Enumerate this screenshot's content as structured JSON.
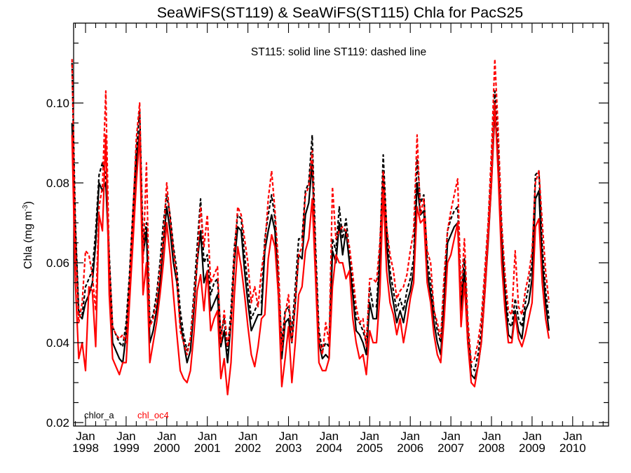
{
  "chart_data": {
    "type": "line",
    "title": "SeaWiFS(ST119) & SeaWiFS(ST115)  Chla for PacS25",
    "annotation": "ST115: solid line   ST119: dashed line",
    "ylabel": "Chla (mg m⁻³)",
    "ylabel_main": "Chla (mg m",
    "ylabel_sup": "-3",
    "ylabel_close": ")",
    "xlabel": "",
    "ylim": [
      0.019,
      0.119
    ],
    "yticks": [
      0.02,
      0.04,
      0.06,
      0.08,
      0.1
    ],
    "ytick_labels": [
      "0.02",
      "0.04",
      "0.06",
      "0.08",
      "0.10"
    ],
    "xlim": [
      "1997-09",
      "2010-12"
    ],
    "xticks": [
      {
        "top": "Jan",
        "bottom": "1998"
      },
      {
        "top": "Jan",
        "bottom": "1999"
      },
      {
        "top": "Jan",
        "bottom": "2000"
      },
      {
        "top": "Jan",
        "bottom": "2001"
      },
      {
        "top": "Jan",
        "bottom": "2002"
      },
      {
        "top": "Jan",
        "bottom": "2003"
      },
      {
        "top": "Jan",
        "bottom": "2004"
      },
      {
        "top": "Jan",
        "bottom": "2005"
      },
      {
        "top": "Jan",
        "bottom": "2006"
      },
      {
        "top": "Jan",
        "bottom": "2007"
      },
      {
        "top": "Jan",
        "bottom": "2008"
      },
      {
        "top": "Jan",
        "bottom": "2009"
      },
      {
        "top": "Jan",
        "bottom": "2010"
      }
    ],
    "grid": false,
    "legend": [
      {
        "label": "chlor_a",
        "color": "#000000"
      },
      {
        "label": "chl_oc4",
        "color": "#ff0000"
      }
    ],
    "start_month": "1997-09",
    "series": [
      {
        "name": "chlor_a ST115",
        "color": "#000000",
        "dash": "solid",
        "values": [
          0.095,
          0.068,
          0.047,
          0.046,
          0.05,
          0.052,
          0.055,
          0.065,
          0.08,
          0.078,
          0.08,
          0.06,
          0.04,
          0.038,
          0.036,
          0.035,
          0.042,
          0.055,
          0.07,
          0.085,
          0.093,
          0.062,
          0.068,
          0.04,
          0.043,
          0.048,
          0.055,
          0.065,
          0.074,
          0.068,
          0.06,
          0.055,
          0.045,
          0.04,
          0.035,
          0.038,
          0.048,
          0.06,
          0.068,
          0.055,
          0.058,
          0.048,
          0.05,
          0.052,
          0.039,
          0.043,
          0.035,
          0.045,
          0.06,
          0.069,
          0.068,
          0.058,
          0.05,
          0.043,
          0.045,
          0.047,
          0.047,
          0.063,
          0.068,
          0.072,
          0.068,
          0.052,
          0.036,
          0.045,
          0.046,
          0.04,
          0.05,
          0.062,
          0.061,
          0.072,
          0.075,
          0.085,
          0.06,
          0.04,
          0.036,
          0.037,
          0.036,
          0.063,
          0.06,
          0.07,
          0.062,
          0.068,
          0.06,
          0.052,
          0.043,
          0.042,
          0.04,
          0.037,
          0.05,
          0.046,
          0.046,
          0.06,
          0.082,
          0.065,
          0.055,
          0.05,
          0.045,
          0.048,
          0.045,
          0.05,
          0.053,
          0.058,
          0.08,
          0.072,
          0.073,
          0.058,
          0.052,
          0.045,
          0.04,
          0.037,
          0.05,
          0.065,
          0.067,
          0.069,
          0.07,
          0.048,
          0.058,
          0.04,
          0.032,
          0.031,
          0.034,
          0.04,
          0.052,
          0.065,
          0.08,
          0.098,
          0.085,
          0.066,
          0.052,
          0.042,
          0.041,
          0.048,
          0.043,
          0.041,
          0.048,
          0.05,
          0.056,
          0.076,
          0.078,
          0.06,
          0.05,
          0.043
        ]
      },
      {
        "name": "chlor_a ST119",
        "color": "#000000",
        "dash": "dashed",
        "values": [
          0.11,
          0.07,
          0.048,
          0.047,
          0.054,
          0.056,
          0.058,
          0.068,
          0.082,
          0.085,
          0.082,
          0.062,
          0.044,
          0.042,
          0.04,
          0.039,
          0.045,
          0.057,
          0.073,
          0.088,
          0.098,
          0.065,
          0.07,
          0.045,
          0.047,
          0.052,
          0.06,
          0.07,
          0.077,
          0.072,
          0.064,
          0.058,
          0.048,
          0.042,
          0.038,
          0.041,
          0.052,
          0.064,
          0.076,
          0.06,
          0.062,
          0.052,
          0.055,
          0.056,
          0.042,
          0.046,
          0.038,
          0.048,
          0.064,
          0.072,
          0.071,
          0.062,
          0.054,
          0.046,
          0.048,
          0.05,
          0.05,
          0.066,
          0.072,
          0.077,
          0.071,
          0.055,
          0.04,
          0.048,
          0.049,
          0.043,
          0.054,
          0.066,
          0.066,
          0.078,
          0.08,
          0.092,
          0.064,
          0.043,
          0.038,
          0.04,
          0.039,
          0.066,
          0.063,
          0.074,
          0.066,
          0.071,
          0.063,
          0.055,
          0.046,
          0.045,
          0.043,
          0.04,
          0.054,
          0.049,
          0.049,
          0.063,
          0.087,
          0.069,
          0.058,
          0.053,
          0.048,
          0.051,
          0.048,
          0.053,
          0.056,
          0.061,
          0.086,
          0.075,
          0.077,
          0.061,
          0.055,
          0.048,
          0.043,
          0.04,
          0.054,
          0.068,
          0.071,
          0.073,
          0.074,
          0.051,
          0.061,
          0.043,
          0.034,
          0.033,
          0.037,
          0.043,
          0.055,
          0.068,
          0.084,
          0.103,
          0.09,
          0.069,
          0.055,
          0.045,
          0.044,
          0.051,
          0.046,
          0.044,
          0.05,
          0.054,
          0.06,
          0.082,
          0.083,
          0.064,
          0.053,
          0.046
        ]
      },
      {
        "name": "chl_oc4 ST115",
        "color": "#ff0000",
        "dash": "solid",
        "values": [
          0.092,
          0.055,
          0.036,
          0.04,
          0.033,
          0.054,
          0.053,
          0.039,
          0.072,
          0.068,
          0.092,
          0.052,
          0.036,
          0.034,
          0.032,
          0.035,
          0.035,
          0.05,
          0.065,
          0.08,
          0.092,
          0.052,
          0.06,
          0.035,
          0.04,
          0.045,
          0.052,
          0.06,
          0.07,
          0.062,
          0.052,
          0.042,
          0.033,
          0.031,
          0.03,
          0.033,
          0.042,
          0.053,
          0.057,
          0.048,
          0.058,
          0.043,
          0.046,
          0.048,
          0.031,
          0.036,
          0.027,
          0.035,
          0.052,
          0.064,
          0.059,
          0.052,
          0.044,
          0.037,
          0.034,
          0.039,
          0.046,
          0.047,
          0.061,
          0.067,
          0.064,
          0.052,
          0.029,
          0.036,
          0.044,
          0.03,
          0.04,
          0.052,
          0.054,
          0.063,
          0.066,
          0.076,
          0.056,
          0.035,
          0.033,
          0.033,
          0.036,
          0.054,
          0.062,
          0.06,
          0.06,
          0.056,
          0.058,
          0.046,
          0.04,
          0.036,
          0.037,
          0.032,
          0.043,
          0.04,
          0.04,
          0.052,
          0.078,
          0.058,
          0.05,
          0.047,
          0.042,
          0.046,
          0.04,
          0.045,
          0.051,
          0.055,
          0.074,
          0.07,
          0.071,
          0.055,
          0.05,
          0.042,
          0.037,
          0.035,
          0.046,
          0.06,
          0.062,
          0.066,
          0.07,
          0.044,
          0.055,
          0.04,
          0.03,
          0.029,
          0.034,
          0.04,
          0.052,
          0.066,
          0.08,
          0.1,
          0.082,
          0.06,
          0.048,
          0.04,
          0.04,
          0.047,
          0.041,
          0.039,
          0.042,
          0.046,
          0.05,
          0.069,
          0.071,
          0.055,
          0.046,
          0.041
        ]
      },
      {
        "name": "chl_oc4 ST119",
        "color": "#ff0000",
        "dash": "dashed",
        "values": [
          0.111,
          0.066,
          0.045,
          0.05,
          0.063,
          0.062,
          0.057,
          0.048,
          0.074,
          0.079,
          0.103,
          0.06,
          0.044,
          0.042,
          0.041,
          0.042,
          0.04,
          0.055,
          0.072,
          0.091,
          0.1,
          0.06,
          0.085,
          0.044,
          0.046,
          0.05,
          0.058,
          0.066,
          0.08,
          0.071,
          0.063,
          0.056,
          0.043,
          0.04,
          0.037,
          0.041,
          0.05,
          0.06,
          0.074,
          0.064,
          0.072,
          0.055,
          0.057,
          0.059,
          0.04,
          0.048,
          0.039,
          0.045,
          0.062,
          0.074,
          0.072,
          0.066,
          0.06,
          0.05,
          0.054,
          0.049,
          0.058,
          0.064,
          0.076,
          0.083,
          0.073,
          0.06,
          0.038,
          0.047,
          0.052,
          0.04,
          0.051,
          0.062,
          0.064,
          0.077,
          0.079,
          0.088,
          0.061,
          0.041,
          0.037,
          0.045,
          0.04,
          0.079,
          0.066,
          0.068,
          0.069,
          0.068,
          0.064,
          0.057,
          0.049,
          0.045,
          0.046,
          0.039,
          0.056,
          0.056,
          0.055,
          0.065,
          0.083,
          0.069,
          0.062,
          0.058,
          0.051,
          0.053,
          0.054,
          0.057,
          0.063,
          0.068,
          0.092,
          0.072,
          0.076,
          0.063,
          0.06,
          0.048,
          0.045,
          0.041,
          0.057,
          0.068,
          0.073,
          0.077,
          0.081,
          0.052,
          0.066,
          0.046,
          0.035,
          0.036,
          0.04,
          0.046,
          0.058,
          0.07,
          0.088,
          0.111,
          0.093,
          0.07,
          0.057,
          0.048,
          0.047,
          0.063,
          0.049,
          0.047,
          0.053,
          0.057,
          0.063,
          0.08,
          0.083,
          0.07,
          0.058,
          0.05
        ]
      }
    ]
  }
}
